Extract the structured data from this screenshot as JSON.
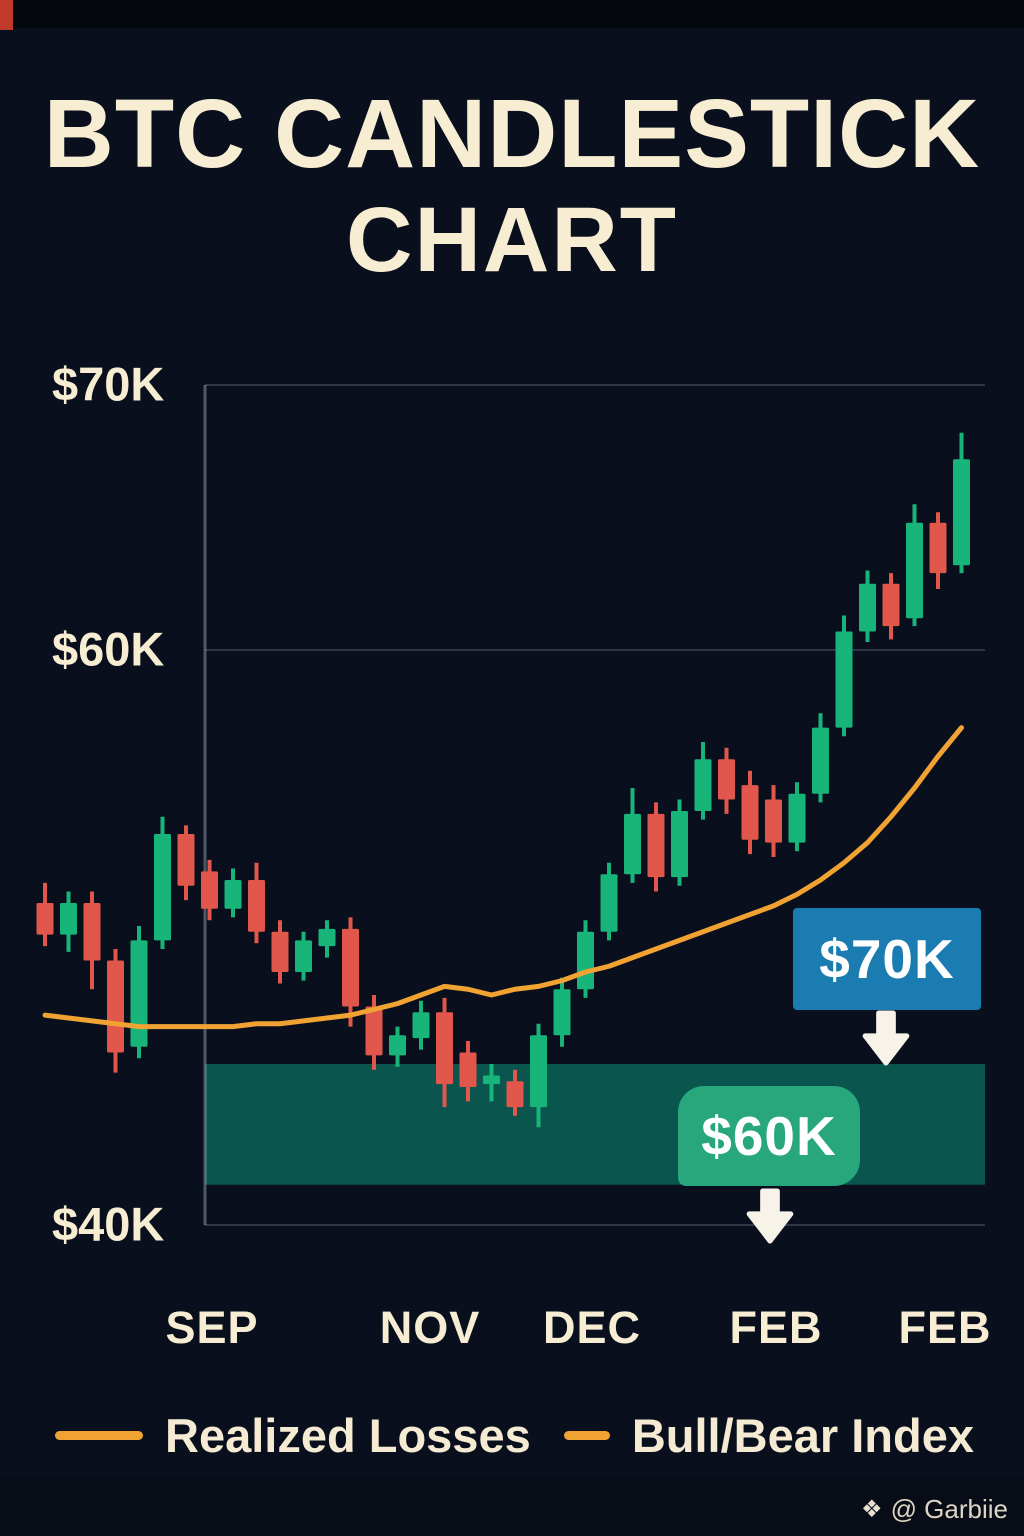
{
  "title": {
    "line1": "BTC CANDLESTICK",
    "line2": "CHART"
  },
  "y_axis": {
    "labels": [
      "$70K",
      "$60K",
      "$40K"
    ]
  },
  "x_axis": {
    "labels": [
      "SEP",
      "NOV",
      "DEC",
      "FEB",
      "FEB"
    ]
  },
  "callouts": {
    "upper": {
      "label": "$70K",
      "color": "#1a7cb0"
    },
    "lower": {
      "label": "$60K",
      "color": "#28a67c"
    }
  },
  "legend": [
    {
      "label": "Realized Losses"
    },
    {
      "label": "Bull/Bear Index"
    }
  ],
  "watermark": {
    "icon": "binance-diamond",
    "text": "@ Garbiie"
  },
  "colors": {
    "background": "#0a0f1d",
    "text_cream": "#f7edd3",
    "bull_green": "#17b57a",
    "bear_red": "#e2574b",
    "line_orange": "#f0a232",
    "band_teal": "#0b5b53",
    "grid": "rgba(190,205,225,0.20)",
    "axis": "rgba(190,205,225,0.38)",
    "arrow_white": "#f7f3e8"
  },
  "chart_data": {
    "type": "candlestick",
    "title": "BTC Candlestick Chart",
    "unit": "USD thousands",
    "ylim": [
      40,
      70
    ],
    "grid": true,
    "y_ticks": [
      {
        "label": "$70K",
        "value": 70
      },
      {
        "label": "$60K",
        "value": 60
      },
      {
        "label": "$40K",
        "value": 40
      }
    ],
    "x_tick_labels": [
      "SEP",
      "NOV",
      "DEC",
      "FEB",
      "FEB"
    ],
    "candles_ohlc": [
      [
        51.2,
        51.9,
        49.7,
        50.1
      ],
      [
        50.1,
        51.6,
        49.5,
        51.2
      ],
      [
        51.2,
        51.6,
        48.2,
        49.2
      ],
      [
        49.2,
        49.6,
        45.3,
        46.0
      ],
      [
        46.2,
        50.4,
        45.8,
        49.9
      ],
      [
        49.9,
        54.2,
        49.6,
        53.6
      ],
      [
        53.6,
        53.9,
        51.3,
        51.8
      ],
      [
        52.3,
        52.7,
        50.6,
        51.0
      ],
      [
        51.0,
        52.4,
        50.7,
        52.0
      ],
      [
        52.0,
        52.6,
        49.8,
        50.2
      ],
      [
        50.2,
        50.6,
        48.4,
        48.8
      ],
      [
        48.8,
        50.2,
        48.5,
        49.9
      ],
      [
        49.7,
        50.6,
        49.3,
        50.3
      ],
      [
        50.3,
        50.7,
        46.9,
        47.6
      ],
      [
        47.6,
        48.0,
        45.4,
        45.9
      ],
      [
        45.9,
        46.9,
        45.5,
        46.6
      ],
      [
        46.5,
        47.8,
        46.1,
        47.4
      ],
      [
        47.4,
        47.9,
        44.1,
        44.9
      ],
      [
        46.0,
        46.4,
        44.3,
        44.8
      ],
      [
        44.9,
        45.6,
        44.3,
        45.2
      ],
      [
        45.0,
        45.4,
        43.8,
        44.1
      ],
      [
        44.1,
        47.0,
        43.4,
        46.6
      ],
      [
        46.6,
        48.6,
        46.2,
        48.2
      ],
      [
        48.2,
        50.6,
        47.9,
        50.2
      ],
      [
        50.2,
        52.6,
        49.9,
        52.2
      ],
      [
        52.2,
        55.2,
        51.9,
        54.3
      ],
      [
        54.3,
        54.7,
        51.6,
        52.1
      ],
      [
        52.1,
        54.8,
        51.8,
        54.4
      ],
      [
        54.4,
        56.8,
        54.1,
        56.2
      ],
      [
        56.2,
        56.6,
        54.3,
        54.8
      ],
      [
        55.3,
        55.8,
        52.9,
        53.4
      ],
      [
        54.8,
        55.3,
        52.8,
        53.3
      ],
      [
        53.3,
        55.4,
        53.0,
        55.0
      ],
      [
        55.0,
        57.8,
        54.7,
        57.3
      ],
      [
        57.3,
        61.3,
        57.0,
        60.7
      ],
      [
        60.7,
        63.0,
        60.3,
        62.5
      ],
      [
        62.5,
        62.9,
        60.4,
        60.9
      ],
      [
        61.2,
        65.5,
        60.9,
        64.8
      ],
      [
        64.8,
        65.2,
        62.3,
        62.9
      ],
      [
        63.2,
        68.2,
        62.9,
        67.2
      ]
    ],
    "overlay_line": {
      "name": "Realized Losses / Bull-Bear Index",
      "values": [
        47.3,
        47.2,
        47.1,
        47.0,
        46.9,
        46.9,
        46.9,
        46.9,
        46.9,
        47.0,
        47.0,
        47.1,
        47.2,
        47.3,
        47.5,
        47.7,
        48.0,
        48.3,
        48.2,
        48.0,
        48.2,
        48.3,
        48.5,
        48.8,
        49.0,
        49.3,
        49.6,
        49.9,
        50.2,
        50.5,
        50.8,
        51.1,
        51.5,
        52.0,
        52.6,
        53.3,
        54.2,
        55.2,
        56.3,
        57.3
      ]
    },
    "highlight_band": {
      "from": 41.4,
      "to": 45.6,
      "color": "#0b5b53"
    },
    "annotations": [
      {
        "text": "$70K",
        "type": "callout",
        "style": "blue-box-with-down-arrow"
      },
      {
        "text": "$60K",
        "type": "callout",
        "style": "green-box-with-down-arrow"
      }
    ],
    "legend_position": "bottom"
  }
}
